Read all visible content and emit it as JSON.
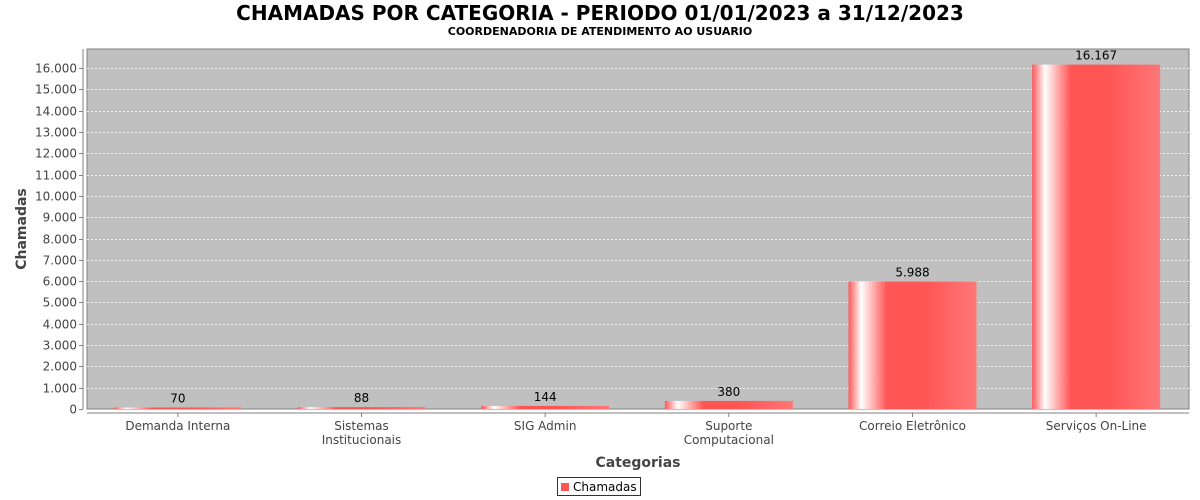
{
  "title": "CHAMADAS POR CATEGORIA - PERIODO 01/01/2023 a 31/12/2023",
  "subtitle": "COORDENADORIA DE ATENDIMENTO AO USUARIO",
  "colors": {
    "plot_background": "#c0c0c0",
    "bar": "#ff5555",
    "bar_highlight": "#ffffff",
    "grid": "#ffffff"
  },
  "chart_data": {
    "type": "bar",
    "title": "CHAMADAS POR CATEGORIA - PERIODO 01/01/2023 a 31/12/2023",
    "subtitle": "COORDENADORIA DE ATENDIMENTO AO USUARIO",
    "xlabel": "Categorias",
    "ylabel": "Chamadas",
    "ylim": [
      0,
      16900
    ],
    "yticks": [
      0,
      1000,
      2000,
      3000,
      4000,
      5000,
      6000,
      7000,
      8000,
      9000,
      10000,
      11000,
      12000,
      13000,
      14000,
      15000,
      16000
    ],
    "ytick_labels": [
      "0",
      "1.000",
      "2.000",
      "3.000",
      "4.000",
      "5.000",
      "6.000",
      "7.000",
      "8.000",
      "9.000",
      "10.000",
      "11.000",
      "12.000",
      "13.000",
      "14.000",
      "15.000",
      "16.000"
    ],
    "grid": true,
    "legend_position": "bottom-center",
    "categories": [
      [
        "Demanda Interna"
      ],
      [
        "Sistemas",
        "Institucionais"
      ],
      [
        "SIG Admin"
      ],
      [
        "Suporte",
        "Computacional"
      ],
      [
        "Correio Eletrônico"
      ],
      [
        "Serviços On-Line"
      ]
    ],
    "series": [
      {
        "name": "Chamadas",
        "values": [
          70,
          88,
          144,
          380,
          5988,
          16167
        ],
        "labels": [
          "70",
          "88",
          "144",
          "380",
          "5.988",
          "16.167"
        ]
      }
    ]
  }
}
